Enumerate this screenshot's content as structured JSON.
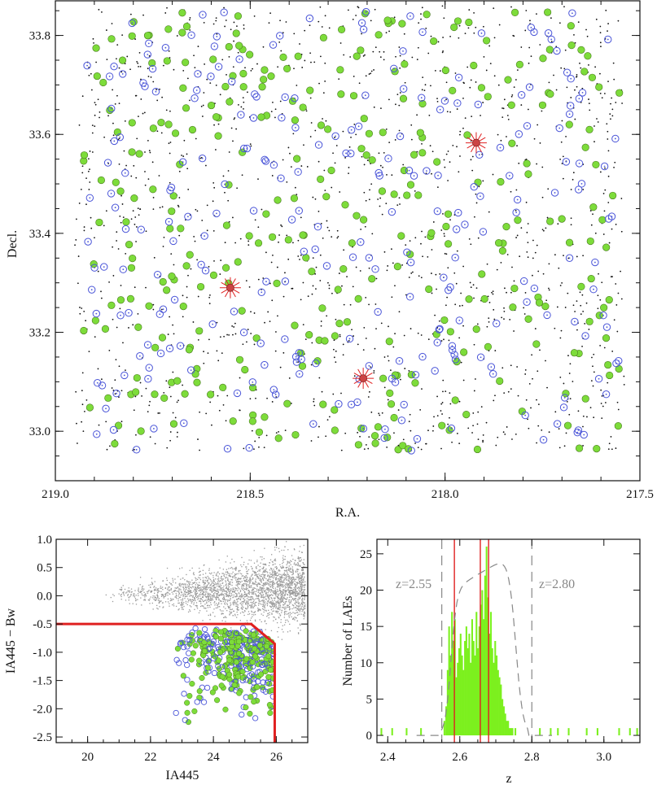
{
  "chart_data": [
    {
      "type": "scatter",
      "title": "",
      "xlabel": "R.A.",
      "ylabel": "Decl.",
      "xlim": [
        219.0,
        217.5
      ],
      "ylim": [
        32.9,
        33.87
      ],
      "xticks": [
        "219.0",
        "218.5",
        "218.0",
        "217.5"
      ],
      "yticks": [
        "33.0",
        "33.2",
        "33.4",
        "33.6",
        "33.8"
      ],
      "series": [
        {
          "name": "field sources",
          "marker": "small black dots"
        },
        {
          "name": "LAE candidates (green)",
          "marker": "green filled circle"
        },
        {
          "name": "LAE candidates (blue)",
          "marker": "blue open circle with dot"
        },
        {
          "name": "red markers",
          "marker": "red star",
          "points": [
            [
              218.551,
              33.29
            ],
            [
              218.21,
              33.107
            ],
            [
              217.92,
              33.583
            ]
          ]
        }
      ],
      "colors": {
        "green": "#7ddc3a",
        "blue": "#4a55d8",
        "red": "#e02020",
        "dot": "#111111"
      }
    },
    {
      "type": "scatter",
      "title": "",
      "xlabel": "IA445",
      "ylabel": "IA445 − Bw",
      "xlim": [
        19.0,
        27.0
      ],
      "ylim": [
        -2.6,
        1.0
      ],
      "xticks": [
        "20",
        "22",
        "24",
        "26"
      ],
      "yticks": [
        "1.0",
        "0.5",
        "0.0",
        "-0.5",
        "-1.0",
        "-1.5",
        "-2.0",
        "-2.5"
      ],
      "selection_boundary": [
        [
          19.0,
          -0.5
        ],
        [
          25.2,
          -0.5
        ],
        [
          25.95,
          -0.85
        ],
        [
          25.95,
          -2.6
        ]
      ],
      "series": [
        {
          "name": "all objects",
          "marker": "gray dots"
        },
        {
          "name": "LAE candidates (green)",
          "marker": "green filled circle"
        },
        {
          "name": "LAE candidates (blue)",
          "marker": "blue open circle"
        }
      ],
      "colors": {
        "gray": "#9a9a9a",
        "green": "#7ddc3a",
        "blue": "#4a55d8",
        "boundary": "#e02020"
      }
    },
    {
      "type": "bar",
      "title": "",
      "xlabel": "z",
      "ylabel": "Number of LAEs",
      "xlim": [
        2.37,
        3.1
      ],
      "ylim": [
        -1,
        27
      ],
      "xticks": [
        "2.4",
        "2.6",
        "2.8",
        "3.0"
      ],
      "yticks": [
        "0",
        "5",
        "10",
        "15",
        "20",
        "25"
      ],
      "annotations": [
        "z=2.55",
        "z=2.80"
      ],
      "vlines_dashed": [
        2.55,
        2.8
      ],
      "vlines_red": [
        2.585,
        2.657,
        2.68
      ],
      "bin_width": 0.004,
      "bins_x": [
        2.38,
        2.41,
        2.45,
        2.49,
        2.555,
        2.56,
        2.564,
        2.568,
        2.572,
        2.576,
        2.58,
        2.584,
        2.588,
        2.592,
        2.596,
        2.6,
        2.604,
        2.608,
        2.612,
        2.616,
        2.62,
        2.624,
        2.628,
        2.632,
        2.636,
        2.64,
        2.644,
        2.648,
        2.652,
        2.656,
        2.66,
        2.664,
        2.668,
        2.672,
        2.676,
        2.68,
        2.684,
        2.688,
        2.692,
        2.696,
        2.7,
        2.704,
        2.708,
        2.712,
        2.716,
        2.72,
        2.724,
        2.728,
        2.732,
        2.736,
        2.74,
        2.744,
        2.752,
        2.82,
        2.85,
        2.87,
        2.9,
        2.95,
        2.98,
        3.04,
        3.07,
        3.09
      ],
      "counts": [
        1,
        1,
        1,
        1,
        2,
        4,
        9,
        15,
        11,
        17,
        13,
        16,
        8,
        10,
        12,
        14,
        11,
        9,
        13,
        15,
        12,
        14,
        10,
        16,
        13,
        11,
        17,
        12,
        15,
        18,
        20,
        16,
        22,
        26,
        19,
        14,
        17,
        12,
        10,
        13,
        11,
        9,
        8,
        7,
        5,
        4,
        3,
        2,
        2,
        1,
        1,
        1,
        1,
        1,
        1,
        1,
        1,
        1,
        1,
        1,
        1,
        1
      ],
      "colors": {
        "bar": "#7cf01e",
        "vline": "#e02020",
        "dashed": "#888888"
      }
    }
  ]
}
